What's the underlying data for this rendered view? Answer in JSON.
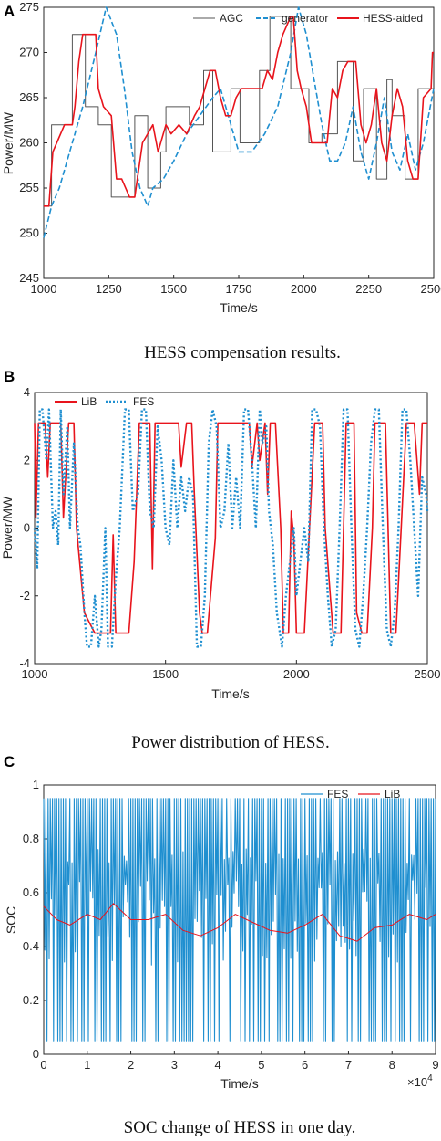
{
  "panels": [
    {
      "label": "A",
      "caption": "HESS compensation results.",
      "chart_data": {
        "type": "line",
        "xlabel": "Time/s",
        "ylabel": "Power/MW",
        "xlim": [
          1000,
          2500
        ],
        "ylim": [
          245,
          275
        ],
        "xticks": [
          "1000",
          "1250",
          "1500",
          "1750",
          "2000",
          "2250",
          "2500"
        ],
        "yticks": [
          "245",
          "250",
          "255",
          "260",
          "265",
          "270",
          "275"
        ],
        "legend": "top-right",
        "legend_layout": "horizontal",
        "series": [
          {
            "name": "AGC",
            "color": "#555555",
            "style": "solid",
            "x": [
              1000,
              1030,
              1030,
              1110,
              1110,
              1160,
              1160,
              1210,
              1210,
              1260,
              1260,
              1300,
              1300,
              1350,
              1350,
              1400,
              1400,
              1450,
              1450,
              1470,
              1470,
              1560,
              1560,
              1615,
              1615,
              1650,
              1650,
              1720,
              1720,
              1755,
              1755,
              1830,
              1830,
              1870,
              1870,
              1950,
              1950,
              2020,
              2020,
              2070,
              2070,
              2130,
              2130,
              2190,
              2190,
              2230,
              2230,
              2280,
              2280,
              2320,
              2320,
              2340,
              2340,
              2390,
              2390,
              2440,
              2440,
              2500
            ],
            "y": [
              253,
              253,
              262,
              262,
              272,
              272,
              264,
              264,
              262,
              262,
              254,
              254,
              254,
              254,
              263,
              263,
              255,
              255,
              259,
              259,
              264,
              264,
              262,
              262,
              268,
              268,
              259,
              259,
              266,
              266,
              260,
              260,
              268,
              268,
              274,
              274,
              266,
              266,
              260,
              260,
              261,
              261,
              269,
              269,
              258,
              258,
              266,
              266,
              256,
              256,
              267,
              267,
              263,
              263,
              256,
              256,
              266,
              266
            ]
          },
          {
            "name": "generator",
            "color": "#1f8fd0",
            "style": "dashed",
            "x": [
              1000,
              1030,
              1060,
              1100,
              1150,
              1200,
              1240,
              1280,
              1310,
              1340,
              1370,
              1400,
              1420,
              1460,
              1500,
              1550,
              1600,
              1650,
              1680,
              1720,
              1750,
              1800,
              1850,
              1900,
              1950,
              1980,
              2010,
              2040,
              2070,
              2100,
              2130,
              2160,
              2190,
              2220,
              2250,
              2280,
              2310,
              2340,
              2370,
              2400,
              2430,
              2460,
              2500
            ],
            "y": [
              249.5,
              253,
              255,
              259,
              264,
              270,
              275,
              272,
              266,
              259,
              255,
              253,
              255,
              256,
              258,
              261,
              263,
              265,
              266,
              262,
              259,
              259,
              261,
              264,
              270,
              275,
              272,
              267,
              262,
              258,
              258,
              260,
              264,
              259,
              256,
              260,
              265,
              259,
              257,
              261,
              257,
              260,
              266
            ]
          },
          {
            "name": "HESS-aided",
            "color": "#e8141c",
            "style": "solid",
            "x": [
              1000,
              1020,
              1035,
              1050,
              1080,
              1110,
              1120,
              1135,
              1150,
              1160,
              1175,
              1200,
              1210,
              1230,
              1260,
              1280,
              1300,
              1330,
              1350,
              1380,
              1400,
              1420,
              1440,
              1470,
              1490,
              1520,
              1550,
              1580,
              1600,
              1620,
              1640,
              1660,
              1680,
              1700,
              1720,
              1740,
              1760,
              1790,
              1820,
              1840,
              1860,
              1880,
              1900,
              1920,
              1950,
              1960,
              1975,
              1990,
              2010,
              2030,
              2050,
              2070,
              2090,
              2110,
              2130,
              2150,
              2170,
              2200,
              2220,
              2240,
              2260,
              2280,
              2300,
              2320,
              2340,
              2360,
              2380,
              2400,
              2420,
              2440,
              2460,
              2490,
              2495,
              2500
            ],
            "y": [
              253,
              253,
              259,
              260,
              262,
              262,
              264,
              269,
              272,
              272,
              272,
              272,
              266,
              264,
              263,
              256,
              256,
              254,
              254,
              260,
              261,
              262,
              259,
              262,
              261,
              262,
              261,
              263,
              264,
              266,
              268,
              268,
              265,
              263,
              263,
              265,
              266,
              266,
              266,
              266,
              268,
              267,
              270,
              272,
              274,
              274,
              268,
              266,
              264,
              260,
              260,
              260,
              260,
              266,
              265,
              268,
              269,
              269,
              262,
              260,
              262,
              266,
              260,
              258,
              263,
              266,
              264,
              258,
              256,
              256,
              265,
              266,
              270,
              270
            ]
          }
        ]
      }
    },
    {
      "label": "B",
      "caption": "Power distribution of HESS.",
      "chart_data": {
        "type": "line",
        "xlabel": "Time/s",
        "ylabel": "Power/MW",
        "xlim": [
          1000,
          2500
        ],
        "ylim": [
          -4,
          4
        ],
        "xticks": [
          "1000",
          "1500",
          "2000",
          "2500"
        ],
        "yticks": [
          "-4",
          "-2",
          "0",
          "2",
          "4"
        ],
        "legend": "top-left",
        "legend_layout": "horizontal",
        "series": [
          {
            "name": "LiB",
            "color": "#e8141c",
            "style": "solid",
            "x": [
              1000,
              1005,
              1015,
              1025,
              1040,
              1050,
              1060,
              1070,
              1100,
              1110,
              1130,
              1150,
              1160,
              1190,
              1230,
              1240,
              1290,
              1300,
              1310,
              1360,
              1380,
              1400,
              1410,
              1440,
              1450,
              1460,
              1480,
              1500,
              1510,
              1550,
              1560,
              1580,
              1600,
              1610,
              1630,
              1640,
              1660,
              1690,
              1700,
              1730,
              1750,
              1760,
              1800,
              1820,
              1830,
              1850,
              1860,
              1880,
              1890,
              1900,
              1920,
              1940,
              1950,
              1970,
              1980,
              1990,
              2000,
              2010,
              2030,
              2050,
              2070,
              2100,
              2110,
              2140,
              2150,
              2170,
              2190,
              2200,
              2220,
              2230,
              2250,
              2270,
              2290,
              2300,
              2320,
              2340,
              2360,
              2380,
              2400,
              2420,
              2440,
              2450,
              2470,
              2480,
              2490,
              2500
            ],
            "y": [
              3.1,
              0.3,
              3.1,
              3.1,
              3.1,
              1.5,
              3.1,
              3.1,
              3.1,
              0.3,
              3.1,
              3.1,
              0,
              -2.5,
              -3.1,
              -3.1,
              -3.1,
              -0.2,
              -3.1,
              -3.1,
              -1.0,
              3.1,
              3.1,
              3.1,
              -1.2,
              3.1,
              3.1,
              3.1,
              3.1,
              3.1,
              1.8,
              3.1,
              3.1,
              1.0,
              -2.5,
              -3.1,
              -3.1,
              -0.3,
              3.1,
              3.1,
              3.1,
              3.1,
              3.1,
              3.1,
              1.8,
              3.1,
              2.0,
              3.1,
              1.0,
              3.1,
              3.1,
              0,
              -3.1,
              -3.1,
              0.5,
              -0.3,
              -3.1,
              -3.1,
              -3.1,
              0,
              3.1,
              3.1,
              0,
              -3.1,
              -3.1,
              -3.1,
              3.1,
              3.1,
              3.1,
              -2.5,
              -3.1,
              -3.1,
              0,
              3.1,
              3.1,
              3.1,
              -3.1,
              -3.1,
              0,
              3.1,
              3.1,
              3.1,
              1.0,
              3.1,
              3.1,
              3.1
            ]
          },
          {
            "name": "FES",
            "color": "#1f8fd0",
            "style": "dotted",
            "x": [
              1000,
              1010,
              1020,
              1030,
              1045,
              1055,
              1070,
              1080,
              1090,
              1100,
              1110,
              1125,
              1135,
              1150,
              1165,
              1175,
              1190,
              1200,
              1215,
              1230,
              1245,
              1255,
              1270,
              1280,
              1295,
              1310,
              1325,
              1345,
              1360,
              1375,
              1395,
              1410,
              1425,
              1440,
              1455,
              1470,
              1485,
              1500,
              1515,
              1530,
              1545,
              1560,
              1575,
              1590,
              1605,
              1620,
              1635,
              1650,
              1665,
              1680,
              1695,
              1710,
              1725,
              1740,
              1755,
              1770,
              1785,
              1800,
              1815,
              1830,
              1845,
              1860,
              1870,
              1885,
              1895,
              1910,
              1925,
              1945,
              1960,
              1975,
              1990,
              2000,
              2015,
              2030,
              2045,
              2060,
              2075,
              2090,
              2105,
              2120,
              2135,
              2150,
              2165,
              2180,
              2195,
              2210,
              2225,
              2240,
              2255,
              2270,
              2285,
              2300,
              2315,
              2330,
              2345,
              2360,
              2375,
              2390,
              2405,
              2420,
              2435,
              2450,
              2465,
              2480,
              2495,
              2500
            ],
            "y": [
              0,
              -1.2,
              3.5,
              3.5,
              2.0,
              3.5,
              0,
              0.5,
              -0.5,
              3.5,
              1.0,
              3.0,
              0,
              2.5,
              0,
              -0.5,
              -2.5,
              -3.5,
              -3.5,
              -2.0,
              -3.5,
              -3.0,
              0,
              -3.5,
              -3.5,
              -1.5,
              0,
              3.5,
              3.5,
              0.5,
              1.0,
              3.5,
              3.5,
              0.5,
              0,
              3.0,
              2.0,
              0,
              -0.5,
              2.0,
              0,
              1.5,
              0.5,
              1.5,
              1.0,
              -3.5,
              -3.5,
              -2.0,
              2.5,
              3.5,
              3.0,
              0,
              0.5,
              2.5,
              0,
              1.5,
              0,
              3.5,
              3.5,
              2.0,
              0,
              3.5,
              2.5,
              3.0,
              0.5,
              -0.5,
              -2.5,
              -3.5,
              -2.0,
              -1.0,
              0,
              -2.0,
              -1.0,
              0,
              -1.0,
              3.5,
              3.5,
              3.0,
              0,
              -2.0,
              -3.5,
              -3.0,
              0,
              3.5,
              3.5,
              0,
              -3.0,
              -3.5,
              -2.0,
              0,
              2.5,
              3.5,
              3.5,
              0,
              -3.0,
              -3.5,
              -2.5,
              0,
              3.5,
              3.5,
              2.0,
              0,
              -2.0,
              1.5,
              1.0,
              0.5
            ]
          }
        ]
      }
    },
    {
      "label": "C",
      "caption": "SOC change of HESS in one day.",
      "chart_data": {
        "type": "line",
        "xlabel": "Time/s",
        "ylabel": "SOC",
        "xlim": [
          0,
          9
        ],
        "ylim": [
          0,
          1
        ],
        "xticks": [
          "0",
          "1",
          "2",
          "3",
          "4",
          "5",
          "6",
          "7",
          "8",
          "9"
        ],
        "yticks": [
          "0",
          "0.2",
          "0.4",
          "0.6",
          "0.8",
          "1"
        ],
        "x_exponent_base": "×10",
        "x_exponent_power": "4",
        "legend": "top-right",
        "legend_layout": "horizontal",
        "series": [
          {
            "name": "FES",
            "color": "#1f8fd0",
            "style": "solid",
            "upper": 0.95,
            "lower": 0.05
          },
          {
            "name": "LiB",
            "color": "#e8141c",
            "style": "solid",
            "x": [
              0,
              0.3,
              0.6,
              1.0,
              1.3,
              1.6,
              2.0,
              2.4,
              2.8,
              3.2,
              3.6,
              4.0,
              4.4,
              4.8,
              5.2,
              5.6,
              6.0,
              6.4,
              6.8,
              7.2,
              7.6,
              8.0,
              8.4,
              8.8,
              9.0
            ],
            "y": [
              0.55,
              0.5,
              0.48,
              0.52,
              0.5,
              0.56,
              0.5,
              0.5,
              0.52,
              0.46,
              0.44,
              0.47,
              0.52,
              0.49,
              0.46,
              0.45,
              0.48,
              0.52,
              0.44,
              0.42,
              0.47,
              0.48,
              0.52,
              0.5,
              0.52
            ]
          }
        ]
      }
    }
  ]
}
